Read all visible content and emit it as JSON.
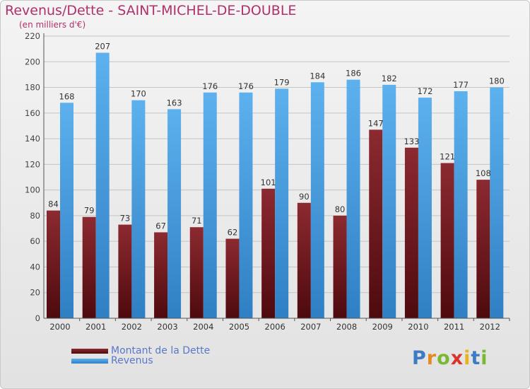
{
  "header": {
    "title": "Revenus/Dette - SAINT-MICHEL-DE-DOUBLE",
    "subtitle": "(en milliers d'€)"
  },
  "chart_data": {
    "type": "bar",
    "title": "Revenus/Dette - SAINT-MICHEL-DE-DOUBLE",
    "subtitle": "(en milliers d'€)",
    "xlabel": "",
    "ylabel": "",
    "ylim": [
      0,
      220
    ],
    "yticks": [
      0,
      20,
      40,
      60,
      80,
      100,
      120,
      140,
      160,
      180,
      200,
      220
    ],
    "grid": true,
    "legend_position": "bottom-left",
    "categories": [
      "2000",
      "2001",
      "2002",
      "2003",
      "2004",
      "2005",
      "2006",
      "2007",
      "2008",
      "2009",
      "2010",
      "2011",
      "2012"
    ],
    "series": [
      {
        "name": "Montant de la Dette",
        "color": "#7a1e24",
        "values": [
          84,
          79,
          73,
          67,
          71,
          62,
          101,
          90,
          80,
          147,
          133,
          121,
          108
        ]
      },
      {
        "name": "Revenus",
        "color": "#4aa3e4",
        "values": [
          168,
          207,
          170,
          163,
          176,
          176,
          179,
          184,
          186,
          182,
          172,
          177,
          180
        ]
      }
    ]
  },
  "legend": {
    "items": [
      {
        "label": "Montant de la Dette",
        "color": "#7a1e24"
      },
      {
        "label": "Revenus",
        "color": "#4aa3e4"
      }
    ]
  },
  "logo": {
    "letters": [
      "P",
      "r",
      "o",
      "x",
      "i",
      "t",
      "i"
    ],
    "colors": [
      "#3d7cc4",
      "#e6891f",
      "#7ab834",
      "#d9342b",
      "#e6b31f",
      "#3d7cc4",
      "#7ab834"
    ]
  }
}
